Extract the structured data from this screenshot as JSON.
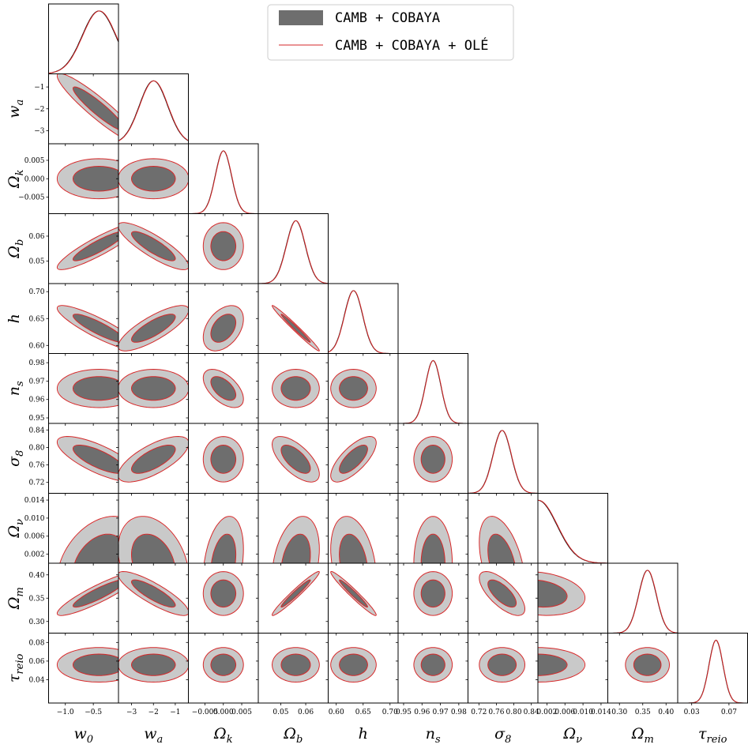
{
  "chart_data": {
    "type": "triangle-corner",
    "legend": {
      "placement": "top-right",
      "entries": [
        {
          "label": "CAMB + COBAYA",
          "style": "filled",
          "color": "#6e6e6e",
          "color_light": "#c9c9c9"
        },
        {
          "label": "CAMB + COBAYA + OLÉ",
          "style": "line",
          "color": "#d62728"
        }
      ]
    },
    "parameters": [
      {
        "key": "w0",
        "name": "w",
        "sub": "0",
        "range": [
          -1.3,
          -0.05
        ],
        "ticks": [
          -1.0,
          -0.5
        ],
        "tick_labels": [
          "−1.0",
          "−0.5"
        ],
        "mean": -0.4,
        "sigma": 0.3
      },
      {
        "key": "wa",
        "name": "w",
        "sub": "a",
        "range": [
          -3.6,
          -0.4
        ],
        "ticks": [
          -3,
          -2,
          -1
        ],
        "tick_labels": [
          "−3",
          "−2",
          "−1"
        ],
        "mean": -2.0,
        "sigma": 0.65
      },
      {
        "key": "Ok",
        "name": "Ω",
        "sub": "k",
        "range": [
          -0.0095,
          0.0095
        ],
        "ticks": [
          -0.005,
          0.0,
          0.005
        ],
        "tick_labels": [
          "−0.005",
          "0.000",
          "0.005"
        ],
        "mean": 0.0,
        "sigma": 0.0022
      },
      {
        "key": "Ob",
        "name": "Ω",
        "sub": "b",
        "range": [
          0.041,
          0.069
        ],
        "ticks": [
          0.05,
          0.06
        ],
        "tick_labels": [
          "0.05",
          "0.06"
        ],
        "mean": 0.056,
        "sigma": 0.0038
      },
      {
        "key": "h",
        "name": "h",
        "sub": "",
        "range": [
          0.585,
          0.715
        ],
        "ticks": [
          0.6,
          0.65,
          0.7
        ],
        "tick_labels": [
          "0.60",
          "0.65",
          "0.70"
        ],
        "mean": 0.632,
        "sigma": 0.017
      },
      {
        "key": "ns",
        "name": "n",
        "sub": "s",
        "range": [
          0.947,
          0.985
        ],
        "ticks": [
          0.95,
          0.96,
          0.97,
          0.98
        ],
        "tick_labels": [
          "0.95",
          "0.96",
          "0.97",
          "0.98"
        ],
        "mean": 0.966,
        "sigma": 0.0042
      },
      {
        "key": "s8",
        "name": "σ",
        "sub": "8",
        "range": [
          0.695,
          0.855
        ],
        "ticks": [
          0.72,
          0.76,
          0.8,
          0.84
        ],
        "tick_labels": [
          "0.72",
          "0.76",
          "0.80",
          "0.84"
        ],
        "mean": 0.773,
        "sigma": 0.021
      },
      {
        "key": "Onu",
        "name": "Ω",
        "sub": "ν",
        "range": [
          0.0,
          0.0155
        ],
        "ticks": [
          0.002,
          0.006,
          0.01,
          0.014
        ],
        "tick_labels": [
          "0.002",
          "0.006",
          "0.010",
          "0.014"
        ],
        "mean": 0.0,
        "sigma": 0.0042
      },
      {
        "key": "Om",
        "name": "Ω",
        "sub": "m",
        "range": [
          0.275,
          0.425
        ],
        "ticks": [
          0.3,
          0.35,
          0.4
        ],
        "tick_labels": [
          "0.30",
          "0.35",
          "0.40"
        ],
        "mean": 0.36,
        "sigma": 0.019
      },
      {
        "key": "tau",
        "name": "τ",
        "sub": "reio",
        "range": [
          0.015,
          0.09
        ],
        "ticks": [
          0.04,
          0.06,
          0.08
        ],
        "tick_labels": [
          "0.04",
          "0.06",
          "0.08"
        ],
        "bottom_ticks": [
          0.03,
          0.07
        ],
        "bottom_tick_labels": [
          "0.03",
          "0.07"
        ],
        "mean": 0.056,
        "sigma": 0.0075
      }
    ],
    "correlations": [
      {
        "pair": [
          "w0",
          "wa"
        ],
        "rho": -0.93
      },
      {
        "pair": [
          "w0",
          "Ob"
        ],
        "rho": 0.9
      },
      {
        "pair": [
          "wa",
          "Ob"
        ],
        "rho": -0.85
      },
      {
        "pair": [
          "w0",
          "h"
        ],
        "rho": -0.88
      },
      {
        "pair": [
          "wa",
          "h"
        ],
        "rho": 0.8
      },
      {
        "pair": [
          "Ok",
          "h"
        ],
        "rho": 0.4
      },
      {
        "pair": [
          "Ob",
          "h"
        ],
        "rho": -0.985
      },
      {
        "pair": [
          "Ok",
          "ns"
        ],
        "rho": -0.55
      },
      {
        "pair": [
          "w0",
          "s8"
        ],
        "rho": -0.75
      },
      {
        "pair": [
          "wa",
          "s8"
        ],
        "rho": 0.7
      },
      {
        "pair": [
          "Ob",
          "s8"
        ],
        "rho": -0.65
      },
      {
        "pair": [
          "h",
          "s8"
        ],
        "rho": 0.72
      },
      {
        "pair": [
          "w0",
          "Om"
        ],
        "rho": 0.9
      },
      {
        "pair": [
          "wa",
          "Om"
        ],
        "rho": -0.85
      },
      {
        "pair": [
          "Ob",
          "Om"
        ],
        "rho": 0.97
      },
      {
        "pair": [
          "h",
          "Om"
        ],
        "rho": -0.97
      },
      {
        "pair": [
          "s8",
          "Om"
        ],
        "rho": -0.7
      },
      {
        "pair": [
          "w0",
          "Onu"
        ],
        "rho": 0.35
      },
      {
        "pair": [
          "wa",
          "Onu"
        ],
        "rho": -0.3
      },
      {
        "pair": [
          "Ok",
          "Onu"
        ],
        "rho": 0.3
      },
      {
        "pair": [
          "Ob",
          "Onu"
        ],
        "rho": 0.3
      },
      {
        "pair": [
          "h",
          "Onu"
        ],
        "rho": -0.3
      },
      {
        "pair": [
          "s8",
          "Onu"
        ],
        "rho": -0.45
      },
      {
        "pair": [
          "Onu",
          "Om"
        ],
        "rho": -0.2
      }
    ],
    "grid": false,
    "contour_levels": [
      "68%",
      "95%"
    ]
  }
}
